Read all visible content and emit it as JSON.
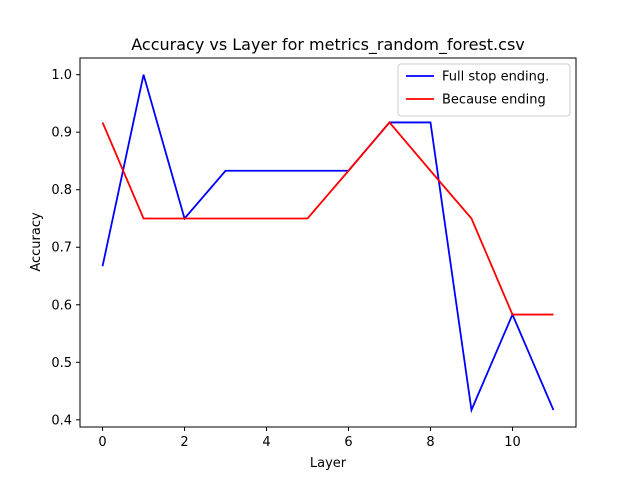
{
  "chart_data": {
    "type": "line",
    "title": "Accuracy vs Layer for metrics_random_forest.csv",
    "xlabel": "Layer",
    "ylabel": "Accuracy",
    "x": [
      0,
      1,
      2,
      3,
      4,
      5,
      6,
      7,
      8,
      9,
      10,
      11
    ],
    "xlim": [
      -0.55,
      11.55
    ],
    "ylim": [
      0.3875,
      1.029
    ],
    "xticks": [
      0,
      2,
      4,
      6,
      8,
      10
    ],
    "yticks": [
      0.4,
      0.5,
      0.6,
      0.7,
      0.8,
      0.9,
      1.0
    ],
    "xtick_labels": [
      "0",
      "2",
      "4",
      "6",
      "8",
      "10"
    ],
    "ytick_labels": [
      "0.4",
      "0.5",
      "0.6",
      "0.7",
      "0.8",
      "0.9",
      "1.0"
    ],
    "grid": false,
    "legend_position": "top-right",
    "series": [
      {
        "name": "Full stop ending.",
        "color": "#0000ff",
        "values": [
          0.667,
          1.0,
          0.75,
          0.833,
          0.833,
          0.833,
          0.833,
          0.917,
          0.917,
          0.417,
          0.583,
          0.417
        ]
      },
      {
        "name": "Because ending",
        "color": "#ff0000",
        "values": [
          0.917,
          0.75,
          0.75,
          0.75,
          0.75,
          0.75,
          0.833,
          0.917,
          0.833,
          0.75,
          0.583,
          0.583
        ]
      }
    ]
  }
}
